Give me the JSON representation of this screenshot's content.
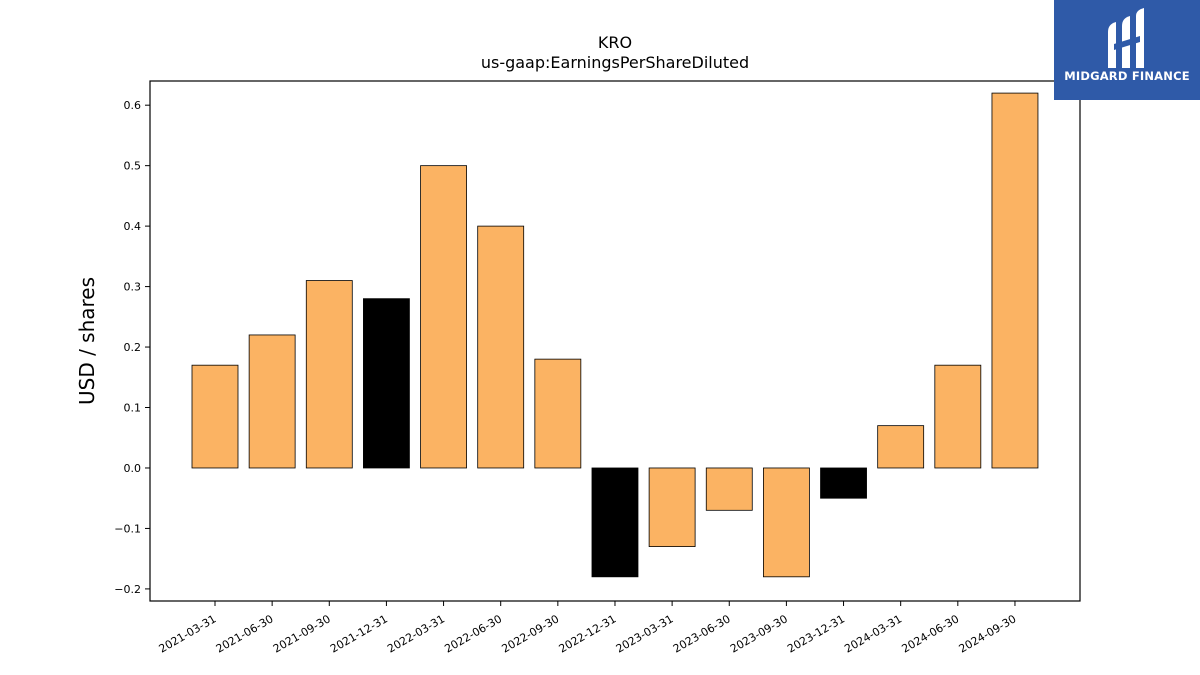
{
  "chart_data": {
    "type": "bar",
    "title": "KRO",
    "subtitle": "us-gaap:EarningsPerShareDiluted",
    "xlabel": "",
    "ylabel": "USD / shares",
    "ylim": [
      -0.22,
      0.64
    ],
    "yticks": [
      "−0.2",
      "−0.1",
      "0.0",
      "0.1",
      "0.2",
      "0.3",
      "0.4",
      "0.5",
      "0.6"
    ],
    "categories": [
      "2021-03-31",
      "2021-06-30",
      "2021-09-30",
      "2021-12-31",
      "2022-03-31",
      "2022-06-30",
      "2022-09-30",
      "2022-12-31",
      "2023-03-31",
      "2023-06-30",
      "2023-09-30",
      "2023-12-31",
      "2024-03-31",
      "2024-06-30",
      "2024-09-30"
    ],
    "values": [
      0.17,
      0.22,
      0.31,
      0.28,
      0.5,
      0.4,
      0.18,
      -0.18,
      -0.13,
      -0.07,
      -0.18,
      -0.05,
      0.07,
      0.17,
      0.62
    ],
    "bar_colors": [
      "#fbb363",
      "#fbb363",
      "#fbb363",
      "#000000",
      "#fbb363",
      "#fbb363",
      "#fbb363",
      "#000000",
      "#fbb363",
      "#fbb363",
      "#fbb363",
      "#000000",
      "#fbb363",
      "#fbb363",
      "#fbb363"
    ],
    "grid": false,
    "legend": "none"
  },
  "logo": {
    "text": "MIDGARD FINANCE",
    "background": "#2f5aa8"
  }
}
